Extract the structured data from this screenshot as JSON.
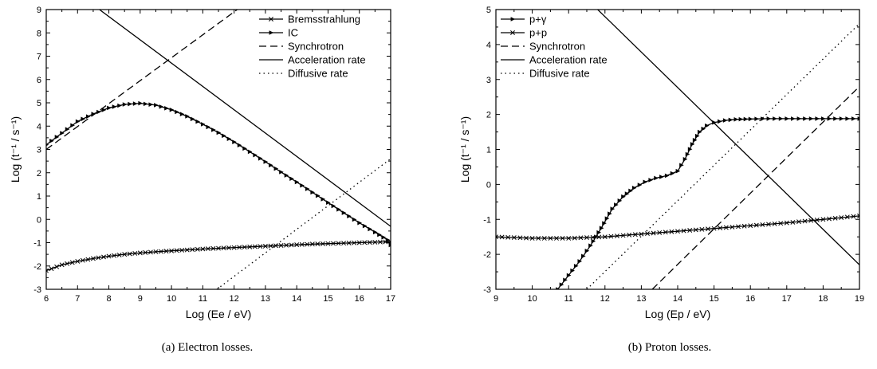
{
  "chart_data": [
    {
      "type": "line",
      "xlabel": "Log (Ee / eV)",
      "ylabel": "Log (t⁻¹ / s⁻¹)",
      "caption": "(a)  Electron losses.",
      "xlim": [
        6,
        17
      ],
      "ylim": [
        -3,
        9
      ],
      "xticks": [
        6,
        7,
        8,
        9,
        10,
        11,
        12,
        13,
        14,
        15,
        16,
        17
      ],
      "yticks": [
        -3,
        -2,
        -1,
        0,
        1,
        2,
        3,
        4,
        5,
        6,
        7,
        8,
        9
      ],
      "grid": false,
      "legend_position": "top-right",
      "series": [
        {
          "name": "Bremsstrahlung",
          "style": "solid",
          "marker": "x",
          "x": [
            6,
            6.5,
            7,
            7.5,
            8,
            8.5,
            9,
            9.5,
            10,
            10.5,
            11,
            11.5,
            12,
            12.5,
            13,
            13.5,
            14,
            14.5,
            15,
            15.5,
            16,
            16.5,
            17
          ],
          "y": [
            -2.2,
            -1.95,
            -1.8,
            -1.68,
            -1.58,
            -1.5,
            -1.44,
            -1.39,
            -1.35,
            -1.31,
            -1.27,
            -1.24,
            -1.21,
            -1.18,
            -1.15,
            -1.12,
            -1.09,
            -1.06,
            -1.04,
            -1.02,
            -1.0,
            -0.98,
            -0.96
          ]
        },
        {
          "name": "IC",
          "style": "solid",
          "marker": "triangle",
          "x": [
            6,
            6.5,
            7,
            7.5,
            8,
            8.5,
            9,
            9.5,
            10,
            10.5,
            11,
            11.5,
            12,
            12.5,
            13,
            13.5,
            14,
            14.5,
            15,
            15.5,
            16,
            16.5,
            16.9,
            17
          ],
          "y": [
            3.2,
            3.7,
            4.2,
            4.52,
            4.78,
            4.93,
            4.98,
            4.9,
            4.7,
            4.42,
            4.08,
            3.72,
            3.32,
            2.9,
            2.47,
            2.03,
            1.6,
            1.16,
            0.72,
            0.28,
            -0.15,
            -0.55,
            -0.88,
            -1.1
          ]
        },
        {
          "name": "Synchrotron",
          "style": "dashed",
          "x": [
            6,
            12.1
          ],
          "y": [
            3.0,
            9.0
          ]
        },
        {
          "name": "Acceleration rate",
          "style": "solid",
          "x": [
            7.7,
            17
          ],
          "y": [
            9.0,
            -0.3
          ]
        },
        {
          "name": "Diffusive rate",
          "style": "dotted",
          "x": [
            11.45,
            17
          ],
          "y": [
            -3.0,
            2.6
          ]
        }
      ]
    },
    {
      "type": "line",
      "xlabel": "Log (Ep / eV)",
      "ylabel": "Log (t⁻¹ / s⁻¹)",
      "caption": "(b)  Proton losses.",
      "xlim": [
        9,
        19
      ],
      "ylim": [
        -3,
        5
      ],
      "xticks": [
        9,
        10,
        11,
        12,
        13,
        14,
        15,
        16,
        17,
        18,
        19
      ],
      "yticks": [
        -3,
        -2,
        -1,
        0,
        1,
        2,
        3,
        4,
        5
      ],
      "grid": false,
      "legend_position": "top-left",
      "series": [
        {
          "name": "p+γ",
          "style": "solid",
          "marker": "triangle",
          "x": [
            10.7,
            11.0,
            11.3,
            11.6,
            11.9,
            12.2,
            12.5,
            12.8,
            13.1,
            13.4,
            13.7,
            14.0,
            14.2,
            14.4,
            14.6,
            14.8,
            15.0,
            15.3,
            15.6,
            16,
            16.5,
            17,
            17.5,
            18,
            18.5,
            19
          ],
          "y": [
            -3.0,
            -2.6,
            -2.2,
            -1.75,
            -1.25,
            -0.7,
            -0.35,
            -0.1,
            0.07,
            0.18,
            0.25,
            0.38,
            0.72,
            1.15,
            1.5,
            1.68,
            1.77,
            1.83,
            1.86,
            1.87,
            1.88,
            1.88,
            1.88,
            1.88,
            1.88,
            1.88
          ]
        },
        {
          "name": "p+p",
          "style": "solid",
          "marker": "x",
          "x": [
            9,
            9.5,
            10,
            10.5,
            11,
            11.5,
            12,
            12.5,
            13,
            13.5,
            14,
            14.5,
            15,
            15.5,
            16,
            16.5,
            17,
            17.5,
            18,
            18.5,
            19
          ],
          "y": [
            -1.5,
            -1.52,
            -1.54,
            -1.54,
            -1.54,
            -1.52,
            -1.5,
            -1.46,
            -1.42,
            -1.38,
            -1.34,
            -1.3,
            -1.26,
            -1.22,
            -1.18,
            -1.14,
            -1.1,
            -1.05,
            -1.0,
            -0.95,
            -0.9
          ]
        },
        {
          "name": "Synchrotron",
          "style": "dashed",
          "x": [
            13.3,
            19
          ],
          "y": [
            -3.0,
            2.8
          ]
        },
        {
          "name": "Acceleration rate",
          "style": "solid",
          "x": [
            11.8,
            19
          ],
          "y": [
            5.0,
            -2.3
          ]
        },
        {
          "name": "Diffusive rate",
          "style": "dotted",
          "x": [
            11.5,
            19
          ],
          "y": [
            -3.0,
            4.6
          ]
        }
      ]
    }
  ]
}
